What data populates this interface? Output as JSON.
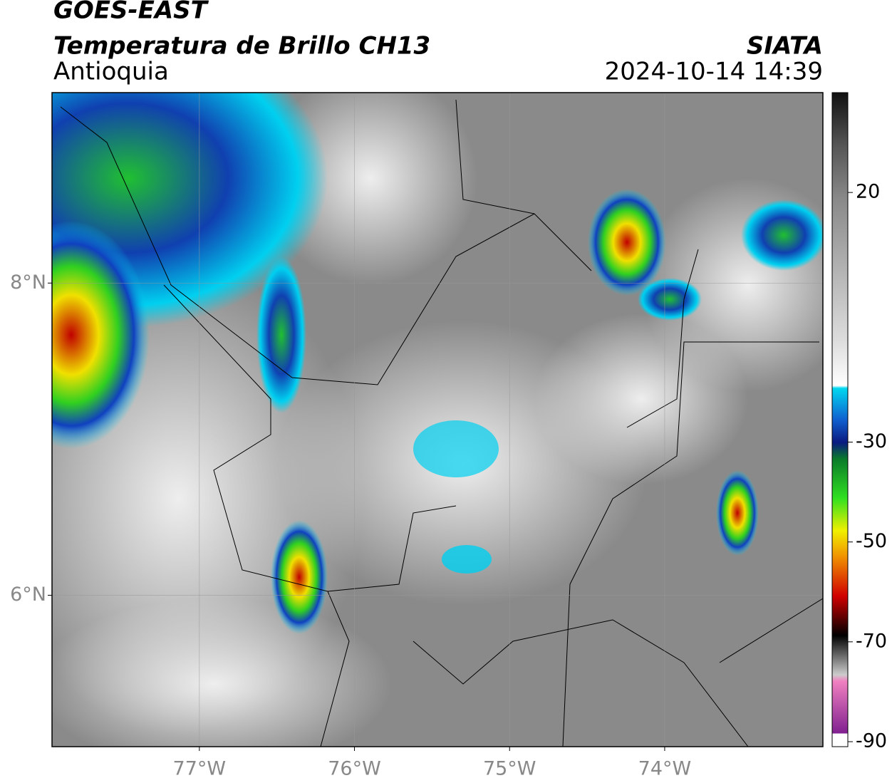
{
  "header": {
    "title": "GOES-EAST",
    "subtitle": "Temperatura de Brillo CH13",
    "region": "Antioquia",
    "source": "SIATA",
    "datetime": "2024-10-14 14:39"
  },
  "map": {
    "xlim": [
      -77.95,
      -72.98
    ],
    "ylim": [
      5.03,
      9.22
    ],
    "xticks": [
      {
        "value": -77,
        "label": "77°W"
      },
      {
        "value": -76,
        "label": "76°W"
      },
      {
        "value": -75,
        "label": "75°W"
      },
      {
        "value": -74,
        "label": "74°W"
      }
    ],
    "yticks": [
      {
        "value": 8,
        "label": "8°N"
      },
      {
        "value": 6,
        "label": "6°N"
      }
    ],
    "grid": true
  },
  "colorbar": {
    "lim": [
      -91,
      40
    ],
    "ticks": [
      20,
      -30,
      -50,
      -70,
      -90
    ]
  }
}
